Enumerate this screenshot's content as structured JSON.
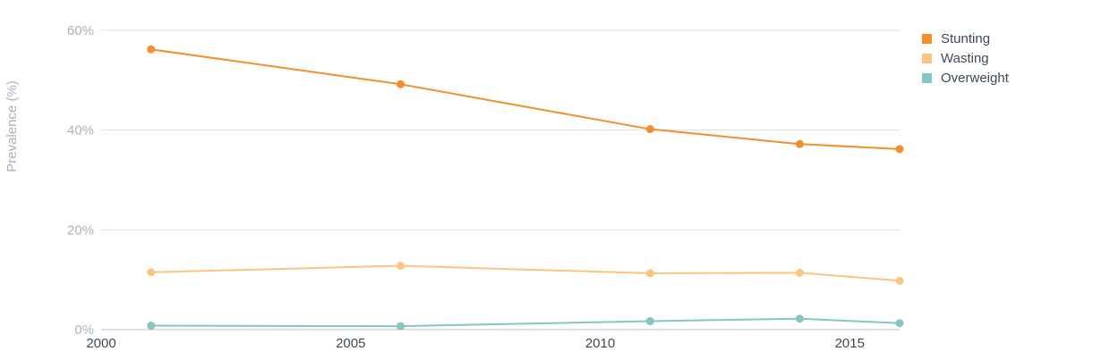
{
  "chart_data": {
    "type": "line",
    "title": "",
    "xlabel": "",
    "ylabel": "Prevalence (%)",
    "xlim": [
      2000,
      2016
    ],
    "ylim": [
      0,
      60
    ],
    "x_ticks": [
      2000,
      2005,
      2010,
      2015
    ],
    "y_ticks": [
      0,
      20,
      40,
      60
    ],
    "y_tick_labels": [
      "0%",
      "20%",
      "40%",
      "60%"
    ],
    "grid": true,
    "legend_position": "top-right",
    "series": [
      {
        "name": "Stunting",
        "color": "#f28e2b",
        "x": [
          2001,
          2006,
          2011,
          2014,
          2016
        ],
        "y": [
          56.2,
          49.2,
          40.2,
          37.2,
          36.2
        ]
      },
      {
        "name": "Wasting",
        "color": "#fbc57f",
        "x": [
          2001,
          2006,
          2011,
          2014,
          2016
        ],
        "y": [
          11.5,
          12.8,
          11.3,
          11.4,
          9.8
        ]
      },
      {
        "name": "Overweight",
        "color": "#86c5c3",
        "x": [
          2001,
          2006,
          2011,
          2014,
          2016
        ],
        "y": [
          0.8,
          0.7,
          1.7,
          2.2,
          1.3
        ]
      }
    ]
  }
}
